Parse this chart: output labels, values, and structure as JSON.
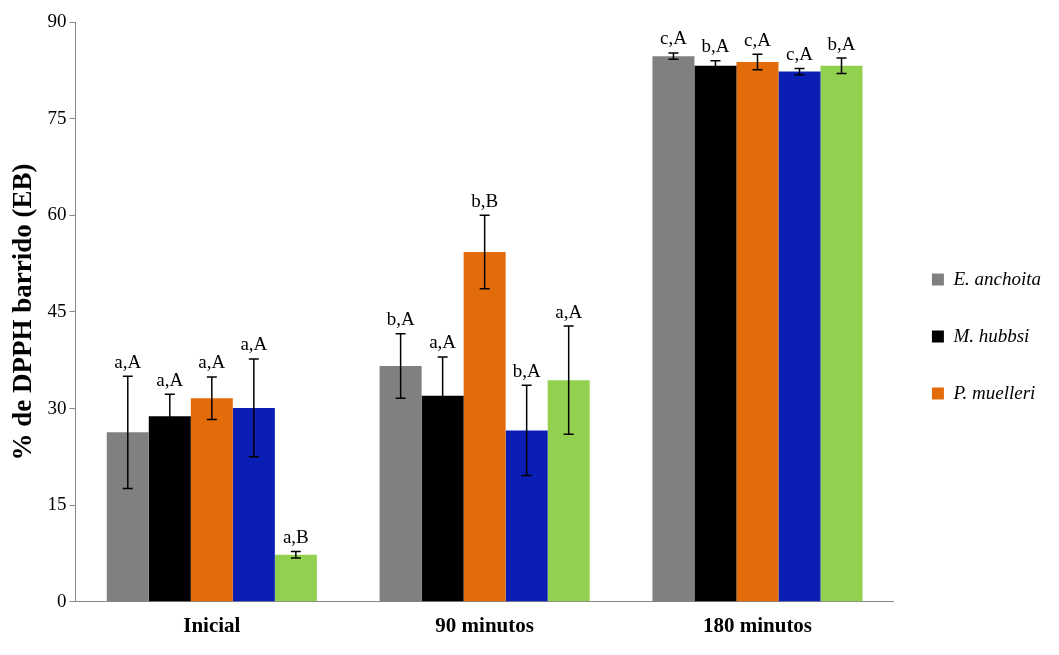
{
  "chart_data": {
    "type": "bar",
    "ylabel": "% de DPPH barrido (EB)",
    "categories": [
      "Inicial",
      "90 minutos",
      "180 minutos"
    ],
    "ylim": [
      0,
      90
    ],
    "yticks": [
      0,
      15,
      30,
      45,
      60,
      75,
      90
    ],
    "grid": false,
    "legend": "right",
    "series": [
      {
        "name": "E. anchoita",
        "color": "#808080",
        "values": [
          26.3,
          36.6,
          84.7
        ],
        "errors": [
          8.7,
          5,
          0.5
        ],
        "value_labels": [
          "a,A",
          "b,A",
          "c,A"
        ]
      },
      {
        "name": "M. hubbsi",
        "color": "#000000",
        "values": [
          28.8,
          32,
          83.2
        ],
        "errors": [
          3.4,
          6,
          0.8
        ],
        "value_labels": [
          "a,A",
          "a,A",
          "b,A"
        ]
      },
      {
        "name": "P. muelleri",
        "color": "#e36c0a",
        "values": [
          31.6,
          54.3,
          83.8
        ],
        "errors": [
          3.3,
          5.7,
          1.2
        ],
        "value_labels": [
          "a,A",
          "b,B",
          "c,A"
        ]
      },
      {
        "color": "#0a1eb4",
        "values": [
          30.1,
          26.6,
          82.3
        ],
        "errors": [
          7.6,
          7,
          0.5
        ],
        "value_labels": [
          "a,A",
          "b,A",
          "c,A"
        ]
      },
      {
        "color": "#92d050",
        "values": [
          7.3,
          34.4,
          83.2
        ],
        "errors": [
          0.5,
          8.4,
          1.2
        ],
        "value_labels": [
          "a,B",
          "a,A",
          "b,A"
        ]
      }
    ]
  }
}
